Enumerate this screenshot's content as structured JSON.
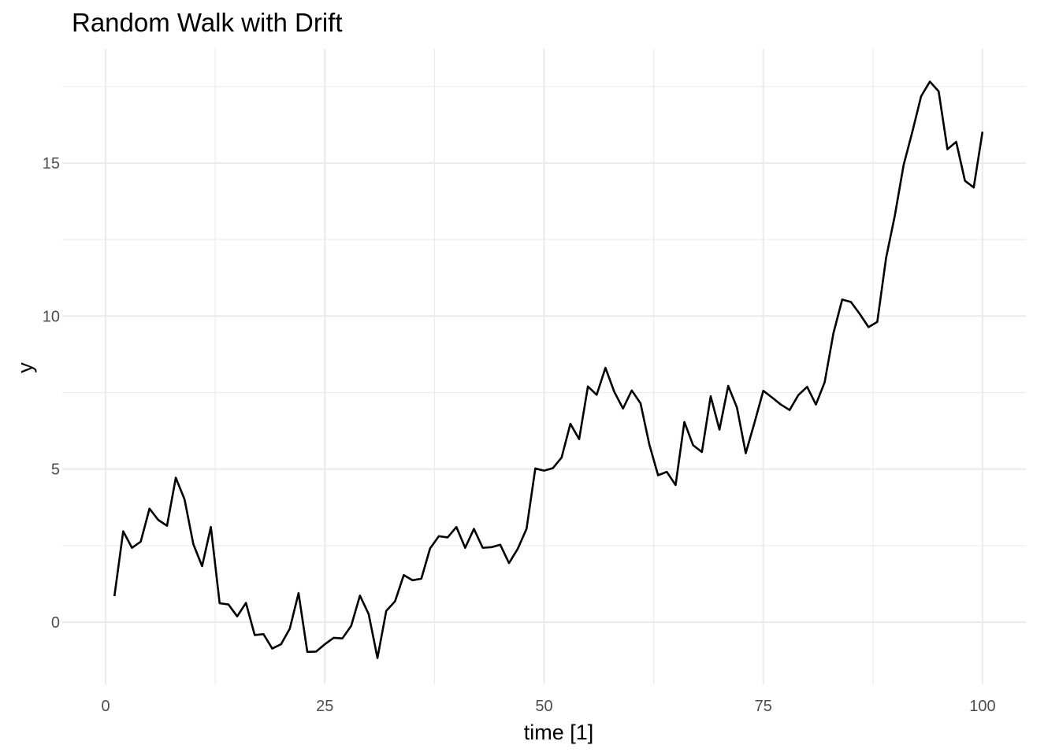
{
  "chart_data": {
    "type": "line",
    "title": "Random Walk with Drift",
    "xlabel": "time [1]",
    "ylabel": "y",
    "xlim": [
      -4.95,
      104.95
    ],
    "ylim": [
      -2.03,
      18.73
    ],
    "x_ticks": [
      0,
      25,
      50,
      75,
      100
    ],
    "x_minor_ticks": [
      12.5,
      37.5,
      62.5,
      87.5
    ],
    "y_ticks": [
      0,
      5,
      10,
      15
    ],
    "y_minor_ticks": [
      2.5,
      7.5,
      12.5,
      17.5
    ],
    "grid": true,
    "legend": "none",
    "line_color": "#000000",
    "x": [
      1,
      2,
      3,
      4,
      5,
      6,
      7,
      8,
      9,
      10,
      11,
      12,
      13,
      14,
      15,
      16,
      17,
      18,
      19,
      20,
      21,
      22,
      23,
      24,
      25,
      26,
      27,
      28,
      29,
      30,
      31,
      32,
      33,
      34,
      35,
      36,
      37,
      38,
      39,
      40,
      41,
      42,
      43,
      44,
      45,
      46,
      47,
      48,
      49,
      50,
      51,
      52,
      53,
      54,
      55,
      56,
      57,
      58,
      59,
      60,
      61,
      62,
      63,
      64,
      65,
      66,
      67,
      68,
      69,
      70,
      71,
      72,
      73,
      74,
      75,
      76,
      77,
      78,
      79,
      80,
      81,
      82,
      83,
      84,
      85,
      86,
      87,
      88,
      89,
      90,
      91,
      92,
      93,
      94,
      95,
      96,
      97,
      98,
      99,
      100
    ],
    "y": [
      0.85,
      2.97,
      2.43,
      2.63,
      3.71,
      3.34,
      3.15,
      4.72,
      4.01,
      2.55,
      1.83,
      3.11,
      0.62,
      0.58,
      0.19,
      0.63,
      -0.42,
      -0.39,
      -0.86,
      -0.72,
      -0.21,
      0.95,
      -0.97,
      -0.96,
      -0.72,
      -0.51,
      -0.53,
      -0.12,
      0.87,
      0.26,
      -1.17,
      0.37,
      0.68,
      1.54,
      1.37,
      1.42,
      2.41,
      2.81,
      2.77,
      3.11,
      2.43,
      3.05,
      2.43,
      2.45,
      2.53,
      1.93,
      2.4,
      3.05,
      5.02,
      4.95,
      5.03,
      5.38,
      6.48,
      5.98,
      7.7,
      7.43,
      8.31,
      7.53,
      6.98,
      7.57,
      7.15,
      5.81,
      4.8,
      4.91,
      4.48,
      6.54,
      5.78,
      5.56,
      7.38,
      6.29,
      7.72,
      7.01,
      5.52,
      6.52,
      7.56,
      7.34,
      7.11,
      6.93,
      7.42,
      7.69,
      7.11,
      7.84,
      9.44,
      10.54,
      10.46,
      10.07,
      9.64,
      9.81,
      11.89,
      13.28,
      14.93,
      16.02,
      17.18,
      17.66,
      17.34,
      15.45,
      15.69,
      14.42,
      14.2,
      16.02
    ]
  }
}
